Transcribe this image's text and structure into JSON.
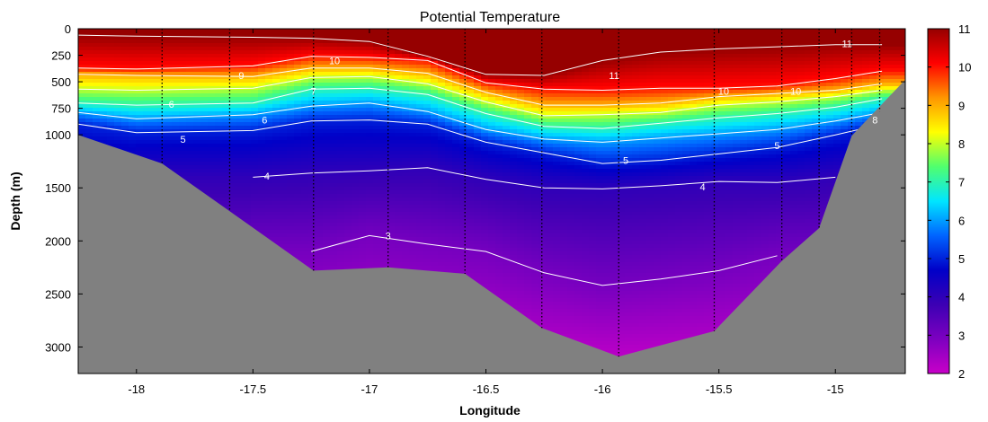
{
  "chart_data": {
    "type": "heatmap",
    "title": "Potential Temperature",
    "xlabel": "Longitude",
    "ylabel": "Depth (m)",
    "xlim": [
      -18.25,
      -14.7
    ],
    "ylim": [
      3250,
      0
    ],
    "x_ticks": [
      -18,
      -17.5,
      -17,
      -16.5,
      -16,
      -15.5,
      -15
    ],
    "x_tick_labels": [
      "-18",
      "-17.5",
      "-17",
      "-16.5",
      "-16",
      "-15.5",
      "-15"
    ],
    "y_ticks": [
      0,
      250,
      500,
      750,
      1000,
      1500,
      2000,
      2500,
      3000
    ],
    "y_tick_labels": [
      "0",
      "250",
      "500",
      "750",
      "1000",
      "1500",
      "2000",
      "2500",
      "3000"
    ],
    "colorbar": {
      "min": 2,
      "max": 11,
      "ticks": [
        2,
        3,
        4,
        5,
        6,
        7,
        8,
        9,
        10,
        11
      ],
      "tick_labels": [
        "2",
        "3",
        "4",
        "5",
        "6",
        "7",
        "8",
        "9",
        "10",
        "11"
      ],
      "colormap": [
        "#c800c8",
        "#7d00c0",
        "#3c00b4",
        "#0000c8",
        "#0064ff",
        "#00e6ff",
        "#50ff6e",
        "#ffff00",
        "#ff9600",
        "#ff0000",
        "#960000"
      ]
    },
    "stations_longitude": [
      -17.89,
      -17.6,
      -17.24,
      -16.92,
      -16.59,
      -16.26,
      -15.93,
      -15.52,
      -15.23,
      -15.07,
      -14.93,
      -14.81
    ],
    "station_depth": [
      1270,
      1720,
      2280,
      2250,
      2310,
      2820,
      3090,
      2850,
      2190,
      1880,
      1010,
      780
    ],
    "bathymetry": [
      {
        "lon": -18.25,
        "depth": 1000
      },
      {
        "lon": -17.89,
        "depth": 1270
      },
      {
        "lon": -17.6,
        "depth": 1720
      },
      {
        "lon": -17.24,
        "depth": 2280
      },
      {
        "lon": -16.92,
        "depth": 2250
      },
      {
        "lon": -16.59,
        "depth": 2310
      },
      {
        "lon": -16.26,
        "depth": 2820
      },
      {
        "lon": -15.93,
        "depth": 3090
      },
      {
        "lon": -15.52,
        "depth": 2850
      },
      {
        "lon": -15.23,
        "depth": 2190
      },
      {
        "lon": -15.07,
        "depth": 1880
      },
      {
        "lon": -14.93,
        "depth": 1010
      },
      {
        "lon": -14.7,
        "depth": 480
      }
    ],
    "isotherms": [
      {
        "value": 11,
        "depths": [
          60,
          70,
          80,
          90,
          120,
          260,
          430,
          440,
          300,
          220,
          190,
          170,
          150,
          150
        ]
      },
      {
        "value": 10,
        "depths": [
          370,
          380,
          350,
          260,
          270,
          300,
          510,
          570,
          580,
          560,
          560,
          540,
          470,
          400
        ]
      },
      {
        "value": 9,
        "depths": [
          430,
          440,
          450,
          370,
          370,
          420,
          600,
          720,
          720,
          700,
          640,
          610,
          580,
          520
        ]
      },
      {
        "value": 8,
        "depths": [
          570,
          580,
          560,
          460,
          450,
          520,
          690,
          820,
          810,
          790,
          720,
          690,
          640,
          580
        ]
      },
      {
        "value": 7,
        "depths": [
          700,
          720,
          700,
          570,
          560,
          620,
          800,
          920,
          940,
          890,
          840,
          800,
          740,
          660
        ]
      },
      {
        "value": 6,
        "depths": [
          790,
          850,
          810,
          730,
          700,
          780,
          950,
          1040,
          1070,
          1030,
          990,
          950,
          870,
          790
        ]
      },
      {
        "value": 5,
        "depths": [
          900,
          980,
          960,
          870,
          860,
          900,
          1070,
          1170,
          1270,
          1240,
          1180,
          1120,
          1000,
          900
        ]
      },
      {
        "value": 4,
        "depths": [
          null,
          null,
          1400,
          1360,
          1340,
          1310,
          1420,
          1500,
          1510,
          1480,
          1440,
          1450,
          1400,
          null
        ]
      },
      {
        "value": 3,
        "depths": [
          null,
          null,
          null,
          2100,
          1950,
          2030,
          2100,
          2300,
          2420,
          2360,
          2280,
          2140,
          null,
          null
        ]
      }
    ],
    "isotherm_lons": [
      -18.25,
      -18.0,
      -17.5,
      -17.25,
      -17.0,
      -16.75,
      -16.5,
      -16.25,
      -16.0,
      -15.75,
      -15.5,
      -15.25,
      -15.0,
      -14.8
    ],
    "contour_labels": [
      {
        "text": "10",
        "lon": -17.15,
        "depth": 300
      },
      {
        "text": "9",
        "lon": -17.55,
        "depth": 440
      },
      {
        "text": "7",
        "lon": -17.24,
        "depth": 590
      },
      {
        "text": "6",
        "lon": -17.85,
        "depth": 710
      },
      {
        "text": "6",
        "lon": -17.45,
        "depth": 860
      },
      {
        "text": "5",
        "lon": -17.8,
        "depth": 1040
      },
      {
        "text": "4",
        "lon": -17.44,
        "depth": 1390
      },
      {
        "text": "3",
        "lon": -16.92,
        "depth": 1950
      },
      {
        "text": "11",
        "lon": -15.95,
        "depth": 440
      },
      {
        "text": "10",
        "lon": -15.48,
        "depth": 590
      },
      {
        "text": "10",
        "lon": -15.17,
        "depth": 590
      },
      {
        "text": "11",
        "lon": -14.95,
        "depth": 140
      },
      {
        "text": "5",
        "lon": -15.9,
        "depth": 1240
      },
      {
        "text": "4",
        "lon": -15.57,
        "depth": 1490
      },
      {
        "text": "5",
        "lon": -15.25,
        "depth": 1100
      },
      {
        "text": "8",
        "lon": -14.83,
        "depth": 860
      }
    ]
  }
}
